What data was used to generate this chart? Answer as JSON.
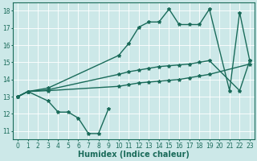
{
  "bg_color": "#cce8e8",
  "grid_color": "#ffffff",
  "line_color": "#1a6b5a",
  "line_width": 1.0,
  "marker": "*",
  "marker_size": 3,
  "xlabel": "Humidex (Indice chaleur)",
  "xlabel_fontsize": 7,
  "xlim": [
    -0.5,
    23.5
  ],
  "ylim": [
    10.5,
    18.5
  ],
  "yticks": [
    11,
    12,
    13,
    14,
    15,
    16,
    17,
    18
  ],
  "xticks": [
    0,
    1,
    2,
    3,
    4,
    5,
    6,
    7,
    8,
    9,
    10,
    11,
    12,
    13,
    14,
    15,
    16,
    17,
    18,
    19,
    20,
    21,
    22,
    23
  ],
  "tick_fontsize": 5.5,
  "series": [
    {
      "x": [
        0,
        1,
        3,
        4,
        5,
        6,
        7,
        8,
        9
      ],
      "y": [
        13.0,
        13.3,
        12.75,
        12.1,
        12.1,
        11.75,
        10.85,
        10.85,
        12.3
      ]
    },
    {
      "x": [
        0,
        1,
        3,
        10,
        11,
        12,
        13,
        14,
        15,
        16,
        17,
        18,
        19,
        21,
        22,
        23
      ],
      "y": [
        13.0,
        13.3,
        13.5,
        15.4,
        16.1,
        17.05,
        17.35,
        17.35,
        18.1,
        17.2,
        17.2,
        17.2,
        18.1,
        13.35,
        17.9,
        15.1
      ]
    },
    {
      "x": [
        0,
        1,
        3,
        10,
        11,
        12,
        13,
        14,
        15,
        16,
        17,
        18,
        19,
        22,
        23
      ],
      "y": [
        13.0,
        13.3,
        13.4,
        14.3,
        14.45,
        14.55,
        14.65,
        14.75,
        14.8,
        14.85,
        14.9,
        15.0,
        15.1,
        13.35,
        15.1
      ]
    },
    {
      "x": [
        0,
        1,
        3,
        10,
        11,
        12,
        13,
        14,
        15,
        16,
        17,
        18,
        19,
        23
      ],
      "y": [
        13.0,
        13.3,
        13.35,
        13.6,
        13.7,
        13.8,
        13.85,
        13.9,
        13.95,
        14.0,
        14.1,
        14.2,
        14.3,
        14.9
      ]
    }
  ]
}
